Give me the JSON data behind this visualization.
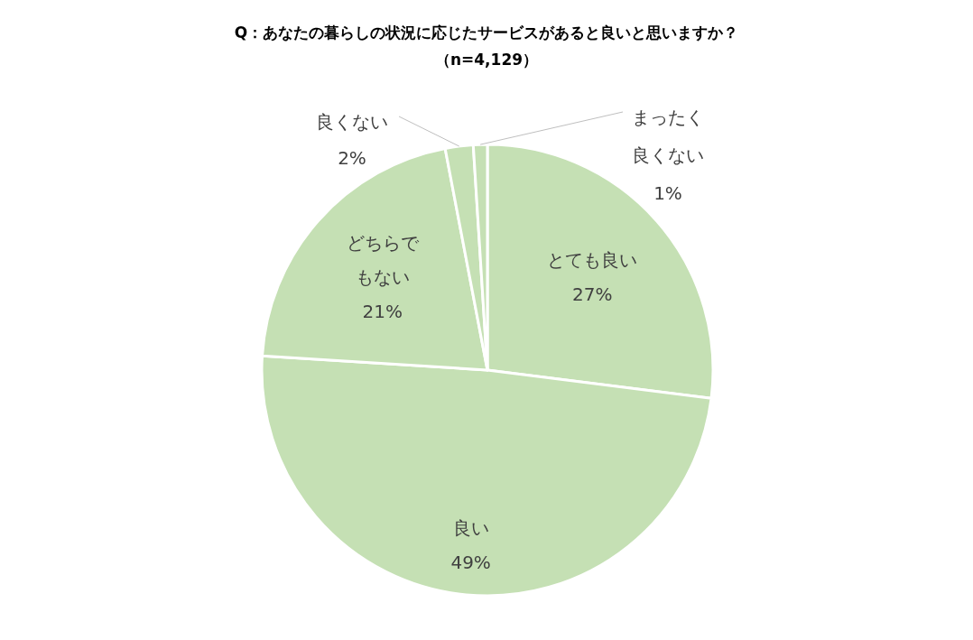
{
  "chart_data": {
    "type": "pie",
    "title": "Q：あなたの暮らしの状況に応じたサービスがあると良いと思いますか？",
    "subtitle": "（n=4,129）",
    "categories": [
      "とても良い",
      "良い",
      "どちらでもない",
      "良くない",
      "まったく良くない"
    ],
    "values": [
      27,
      49,
      21,
      2,
      1
    ],
    "colors": [
      "#c5e0b4",
      "#c5e0b4",
      "#c5e0b4",
      "#c5e0b4",
      "#c5e0b4"
    ],
    "value_labels": [
      "27%",
      "49%",
      "21%",
      "2%",
      "1%"
    ]
  }
}
